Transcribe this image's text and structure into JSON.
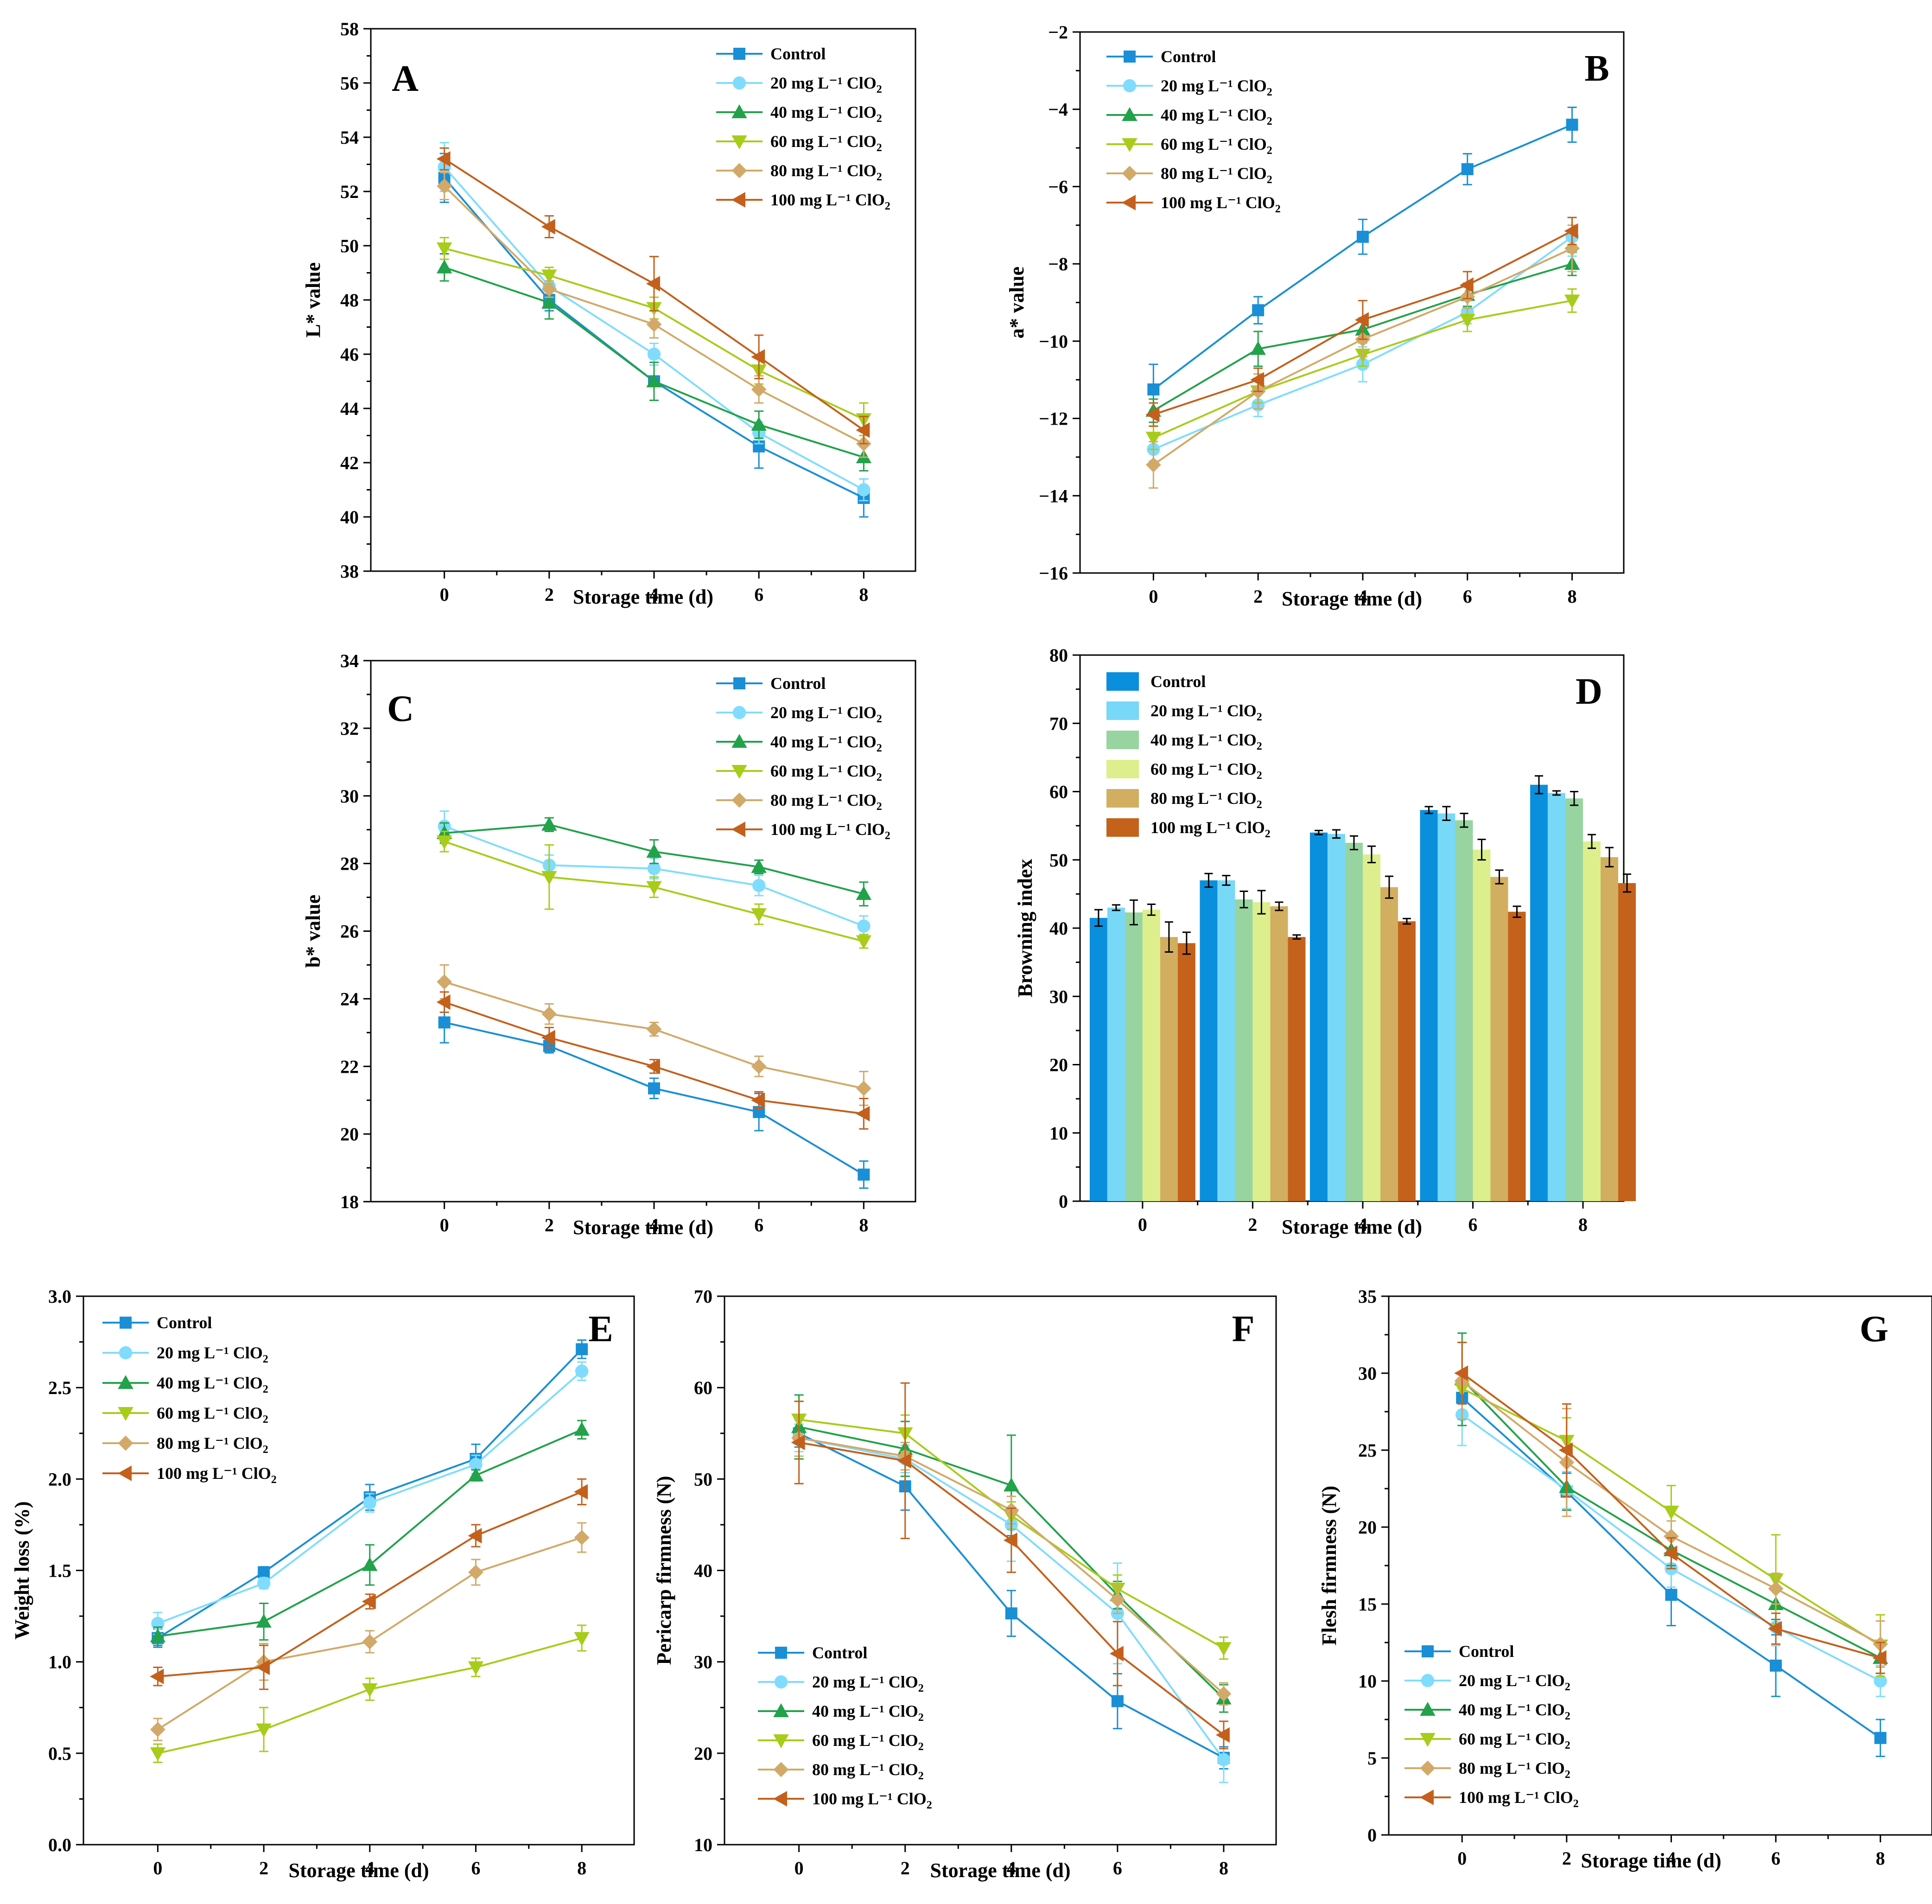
{
  "figure": {
    "series_names": [
      "Control",
      "20 mg L⁻¹ ClO",
      "40 mg L⁻¹ ClO",
      "60 mg L⁻¹ ClO",
      "80 mg L⁻¹ ClO",
      "100 mg L⁻¹ ClO"
    ],
    "series_subscripts": [
      "",
      "2",
      "2",
      "2",
      "2",
      "2"
    ],
    "line_colors": [
      "#1a8fd6",
      "#7fdcff",
      "#22a24a",
      "#a8cc1a",
      "#d2a968",
      "#c4601c"
    ],
    "bar_colors": [
      "#0a8fdc",
      "#78d8f8",
      "#98d4a0",
      "#dcef8c",
      "#d2ae60",
      "#c4621c"
    ],
    "markers": [
      "square",
      "circle",
      "triangle-up",
      "triangle-down",
      "diamond",
      "triangle-left"
    ]
  },
  "chart_data": [
    {
      "panel": "A",
      "type": "line",
      "x": [
        0,
        2,
        4,
        6,
        8
      ],
      "xlabel": "Storage time (d)",
      "ylabel": "L* value",
      "ylim": [
        38,
        58
      ],
      "yticks": [
        38,
        40,
        42,
        44,
        46,
        48,
        50,
        52,
        54,
        56,
        58
      ],
      "legend_position": "top-right",
      "series": [
        {
          "name": "Control",
          "values": [
            52.5,
            48.0,
            45.0,
            42.6,
            40.7
          ],
          "errors": [
            0.9,
            0.4,
            0.7,
            0.8,
            0.7
          ]
        },
        {
          "name": "20 mg L⁻¹ ClO2",
          "values": [
            52.9,
            48.5,
            46.0,
            43.1,
            41.0
          ],
          "errors": [
            0.9,
            0.4,
            0.4,
            0.4,
            0.4
          ]
        },
        {
          "name": "40 mg L⁻¹ ClO2",
          "values": [
            49.2,
            47.9,
            45.0,
            43.4,
            42.2
          ],
          "errors": [
            0.5,
            0.6,
            0.7,
            0.5,
            0.5
          ]
        },
        {
          "name": "60 mg L⁻¹ ClO2",
          "values": [
            49.9,
            48.9,
            47.7,
            45.4,
            43.6
          ],
          "errors": [
            0.4,
            0.3,
            0.4,
            0.5,
            0.6
          ]
        },
        {
          "name": "80 mg L⁻¹ ClO2",
          "values": [
            52.2,
            48.4,
            47.1,
            44.7,
            42.7
          ],
          "errors": [
            0.5,
            0.3,
            0.5,
            0.5,
            0.5
          ]
        },
        {
          "name": "100 mg L⁻¹ ClO2",
          "values": [
            53.2,
            50.7,
            48.6,
            45.9,
            43.2
          ],
          "errors": [
            0.4,
            0.4,
            1.0,
            0.8,
            0.5
          ]
        }
      ]
    },
    {
      "panel": "B",
      "type": "line",
      "x": [
        0,
        2,
        4,
        6,
        8
      ],
      "xlabel": "Storage time (d)",
      "ylabel": "a* value",
      "ylim": [
        -16,
        -2
      ],
      "yticks": [
        -16,
        -14,
        -12,
        -10,
        -8,
        -6,
        -4,
        -2
      ],
      "legend_position": "top-left",
      "series": [
        {
          "name": "Control",
          "values": [
            -11.25,
            -9.2,
            -7.3,
            -5.55,
            -4.4
          ],
          "errors": [
            0.65,
            0.35,
            0.45,
            0.4,
            0.45
          ]
        },
        {
          "name": "20 mg L⁻¹ ClO2",
          "values": [
            -12.8,
            -11.65,
            -10.6,
            -9.25,
            -7.3
          ],
          "errors": [
            0.3,
            0.3,
            0.45,
            0.3,
            0.5
          ]
        },
        {
          "name": "40 mg L⁻¹ ClO2",
          "values": [
            -11.8,
            -10.2,
            -9.7,
            -8.8,
            -8.0
          ],
          "errors": [
            0.3,
            0.45,
            0.3,
            0.3,
            0.3
          ]
        },
        {
          "name": "60 mg L⁻¹ ClO2",
          "values": [
            -12.5,
            -11.3,
            -10.35,
            -9.45,
            -8.95
          ],
          "errors": [
            0.3,
            0.3,
            0.3,
            0.3,
            0.3
          ]
        },
        {
          "name": "80 mg L⁻¹ ClO2",
          "values": [
            -13.2,
            -11.3,
            -9.95,
            -8.85,
            -7.6
          ],
          "errors": [
            0.6,
            0.45,
            0.45,
            0.3,
            0.6
          ]
        },
        {
          "name": "100 mg L⁻¹ ClO2",
          "values": [
            -11.9,
            -11.0,
            -9.45,
            -8.55,
            -7.15
          ],
          "errors": [
            0.3,
            0.3,
            0.5,
            0.35,
            0.35
          ]
        }
      ]
    },
    {
      "panel": "C",
      "type": "line",
      "x": [
        0,
        2,
        4,
        6,
        8
      ],
      "xlabel": "Storage time (d)",
      "ylabel": "b* value",
      "ylim": [
        18,
        34
      ],
      "yticks": [
        18,
        20,
        22,
        24,
        26,
        28,
        30,
        32,
        34
      ],
      "legend_position": "top-right",
      "series": [
        {
          "name": "Control",
          "values": [
            23.3,
            22.6,
            21.35,
            20.65,
            18.8
          ],
          "errors": [
            0.6,
            0.2,
            0.3,
            0.55,
            0.4
          ]
        },
        {
          "name": "20 mg L⁻¹ ClO2",
          "values": [
            29.1,
            27.95,
            27.85,
            27.35,
            26.15
          ],
          "errors": [
            0.45,
            0.3,
            0.3,
            0.3,
            0.3
          ]
        },
        {
          "name": "40 mg L⁻¹ ClO2",
          "values": [
            28.9,
            29.15,
            28.35,
            27.9,
            27.1
          ],
          "errors": [
            0.3,
            0.2,
            0.35,
            0.2,
            0.35
          ]
        },
        {
          "name": "60 mg L⁻¹ ClO2",
          "values": [
            28.65,
            27.6,
            27.3,
            26.5,
            25.7
          ],
          "errors": [
            0.3,
            0.95,
            0.3,
            0.3,
            0.2
          ]
        },
        {
          "name": "80 mg L⁻¹ ClO2",
          "values": [
            24.5,
            23.55,
            23.1,
            22.0,
            21.35
          ],
          "errors": [
            0.5,
            0.3,
            0.2,
            0.3,
            0.5
          ]
        },
        {
          "name": "100 mg L⁻¹ ClO2",
          "values": [
            23.9,
            22.85,
            22.0,
            21.0,
            20.6
          ],
          "errors": [
            0.3,
            0.3,
            0.2,
            0.25,
            0.45
          ]
        }
      ]
    },
    {
      "panel": "D",
      "type": "bar",
      "categories": [
        "0",
        "2",
        "4",
        "6",
        "8"
      ],
      "xlabel": "Storage time (d)",
      "ylabel": "Browning index",
      "ylim": [
        0,
        80
      ],
      "yticks": [
        0,
        10,
        20,
        30,
        40,
        50,
        60,
        70,
        80
      ],
      "legend_position": "top-left",
      "series": [
        {
          "name": "Control",
          "values": [
            41.5,
            47.0,
            54.0,
            57.3,
            61.0
          ],
          "errors": [
            1.2,
            1.0,
            0.3,
            0.5,
            1.3
          ]
        },
        {
          "name": "20 mg L⁻¹ ClO2",
          "values": [
            43.0,
            47.0,
            53.8,
            56.8,
            59.8
          ],
          "errors": [
            0.4,
            0.7,
            0.6,
            1.0,
            0.3
          ]
        },
        {
          "name": "40 mg L⁻¹ ClO2",
          "values": [
            42.3,
            44.2,
            52.5,
            55.8,
            59.0
          ],
          "errors": [
            1.8,
            1.2,
            1.0,
            1.0,
            1.0
          ]
        },
        {
          "name": "60 mg L⁻¹ ClO2",
          "values": [
            42.7,
            43.8,
            50.8,
            51.5,
            52.7
          ],
          "errors": [
            0.8,
            1.7,
            1.2,
            1.5,
            1.0
          ]
        },
        {
          "name": "80 mg L⁻¹ ClO2",
          "values": [
            38.7,
            43.2,
            46.0,
            47.5,
            50.4
          ],
          "errors": [
            2.2,
            0.6,
            1.6,
            1.0,
            1.4
          ]
        },
        {
          "name": "100 mg L⁻¹ ClO2",
          "values": [
            37.8,
            38.7,
            41.0,
            42.4,
            46.6
          ],
          "errors": [
            1.6,
            0.3,
            0.4,
            0.8,
            1.3
          ]
        }
      ]
    },
    {
      "panel": "E",
      "type": "line",
      "x": [
        0,
        2,
        4,
        6,
        8
      ],
      "xlabel": "Storage time (d)",
      "ylabel": "Weight loss (%)",
      "ylim": [
        0,
        3
      ],
      "yticks": [
        0.0,
        0.5,
        1.0,
        1.5,
        2.0,
        2.5,
        3.0
      ],
      "ytick_labels": [
        "0.0",
        "0.5",
        "1.0",
        "1.5",
        "2.0",
        "2.5",
        "3.0"
      ],
      "legend_position": "top-left",
      "series": [
        {
          "name": "Control",
          "values": [
            1.13,
            1.49,
            1.9,
            2.11,
            2.71
          ],
          "errors": [
            0.05,
            0.03,
            0.07,
            0.08,
            0.05
          ]
        },
        {
          "name": "20 mg L⁻¹ ClO2",
          "values": [
            1.21,
            1.43,
            1.87,
            2.08,
            2.59
          ],
          "errors": [
            0.06,
            0.03,
            0.05,
            0.05,
            0.05
          ]
        },
        {
          "name": "40 mg L⁻¹ ClO2",
          "values": [
            1.14,
            1.22,
            1.53,
            2.02,
            2.27
          ],
          "errors": [
            0.05,
            0.1,
            0.11,
            0.03,
            0.05
          ]
        },
        {
          "name": "60 mg L⁻¹ ClO2",
          "values": [
            0.5,
            0.63,
            0.85,
            0.97,
            1.13
          ],
          "errors": [
            0.05,
            0.12,
            0.06,
            0.05,
            0.07
          ]
        },
        {
          "name": "80 mg L⁻¹ ClO2",
          "values": [
            0.63,
            1.0,
            1.11,
            1.49,
            1.68
          ],
          "errors": [
            0.06,
            0.1,
            0.06,
            0.07,
            0.08
          ]
        },
        {
          "name": "100 mg L⁻¹ ClO2",
          "values": [
            0.92,
            0.97,
            1.33,
            1.69,
            1.93
          ],
          "errors": [
            0.05,
            0.12,
            0.04,
            0.06,
            0.07
          ]
        }
      ]
    },
    {
      "panel": "F",
      "type": "line",
      "x": [
        0,
        2,
        4,
        6,
        8
      ],
      "xlabel": "Storage time (d)",
      "ylabel": "Pericarp firmness (N)",
      "ylim": [
        10,
        70
      ],
      "yticks": [
        10,
        20,
        30,
        40,
        50,
        60,
        70
      ],
      "legend_position": "bottom-left",
      "series": [
        {
          "name": "Control",
          "values": [
            55.0,
            49.2,
            35.3,
            25.7,
            19.5
          ],
          "errors": [
            1.5,
            2.6,
            2.5,
            3.0,
            1.2
          ]
        },
        {
          "name": "20 mg L⁻¹ ClO2",
          "values": [
            54.5,
            52.2,
            45.0,
            35.3,
            19.3
          ],
          "errors": [
            1.5,
            1.5,
            4.0,
            5.5,
            2.5
          ]
        },
        {
          "name": "40 mg L⁻¹ ClO2",
          "values": [
            55.7,
            53.3,
            49.3,
            37.3,
            26.0
          ],
          "errors": [
            3.5,
            3.0,
            5.5,
            1.5,
            1.5
          ]
        },
        {
          "name": "60 mg L⁻¹ ClO2",
          "values": [
            56.5,
            55.0,
            46.0,
            38.0,
            31.5
          ],
          "errors": [
            2.0,
            2.0,
            1.5,
            1.5,
            1.2
          ]
        },
        {
          "name": "80 mg L⁻¹ ClO2",
          "values": [
            54.5,
            52.5,
            46.6,
            36.8,
            26.5
          ],
          "errors": [
            2.0,
            1.5,
            1.5,
            1.5,
            1.2
          ]
        },
        {
          "name": "100 mg L⁻¹ ClO2",
          "values": [
            54.0,
            52.0,
            43.3,
            30.9,
            22.0
          ],
          "errors": [
            4.5,
            8.5,
            3.5,
            3.5,
            1.5
          ]
        }
      ]
    },
    {
      "panel": "G",
      "type": "line",
      "x": [
        0,
        2,
        4,
        6,
        8
      ],
      "xlabel": "Storage time (d)",
      "ylabel": "Flesh firmness (N)",
      "ylim": [
        0,
        35
      ],
      "yticks": [
        0,
        5,
        10,
        15,
        20,
        25,
        30,
        35
      ],
      "legend_position": "bottom-left",
      "series": [
        {
          "name": "Control",
          "values": [
            28.4,
            22.3,
            15.6,
            11.0,
            6.3
          ],
          "errors": [
            1.0,
            1.2,
            2.0,
            2.0,
            1.2
          ]
        },
        {
          "name": "20 mg L⁻¹ ClO2",
          "values": [
            27.3,
            22.4,
            17.3,
            13.5,
            10.0
          ],
          "errors": [
            2.0,
            1.2,
            1.2,
            1.2,
            1.0
          ]
        },
        {
          "name": "40 mg L⁻¹ ClO2",
          "values": [
            29.6,
            22.6,
            18.5,
            15.0,
            11.5
          ],
          "errors": [
            3.0,
            1.5,
            1.0,
            1.0,
            1.0
          ]
        },
        {
          "name": "60 mg L⁻¹ ClO2",
          "values": [
            29.0,
            25.6,
            21.0,
            16.6,
            12.3
          ],
          "errors": [
            1.0,
            1.5,
            1.7,
            2.9,
            2.0
          ]
        },
        {
          "name": "80 mg L⁻¹ ClO2",
          "values": [
            29.5,
            24.2,
            19.4,
            16.0,
            12.4
          ],
          "errors": [
            2.5,
            3.5,
            1.0,
            1.0,
            1.5
          ]
        },
        {
          "name": "100 mg L⁻¹ ClO2",
          "values": [
            30.0,
            25.0,
            18.3,
            13.4,
            11.5
          ],
          "errors": [
            2.0,
            3.0,
            1.0,
            1.0,
            1.0
          ]
        }
      ]
    }
  ]
}
